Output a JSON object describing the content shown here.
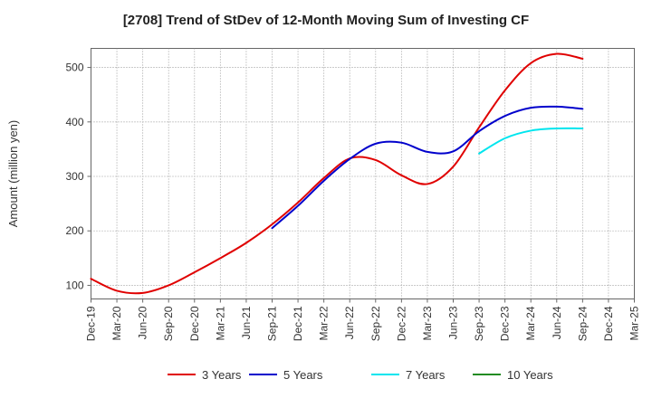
{
  "chart_data": {
    "type": "line",
    "title": "[2708]  Trend of StDev of 12-Month Moving Sum of Investing CF",
    "xlabel": "",
    "ylabel": "Amount (million yen)",
    "ylim": [
      75,
      535
    ],
    "yticks": [
      100,
      200,
      300,
      400,
      500
    ],
    "grid": true,
    "legend_position": "bottom",
    "categories": [
      "Dec-19",
      "Mar-20",
      "Jun-20",
      "Sep-20",
      "Dec-20",
      "Mar-21",
      "Jun-21",
      "Sep-21",
      "Dec-21",
      "Mar-22",
      "Jun-22",
      "Sep-22",
      "Dec-22",
      "Mar-23",
      "Jun-23",
      "Sep-23",
      "Dec-23",
      "Mar-24",
      "Jun-24",
      "Sep-24",
      "Dec-24",
      "Mar-25"
    ],
    "series": [
      {
        "name": "3 Years",
        "color": "#e00000",
        "values": [
          112,
          90,
          86,
          100,
          124,
          150,
          178,
          212,
          252,
          297,
          333,
          330,
          302,
          286,
          318,
          390,
          458,
          508,
          525,
          516,
          null,
          null
        ]
      },
      {
        "name": "5 Years",
        "color": "#0000cc",
        "values": [
          null,
          null,
          null,
          null,
          null,
          null,
          null,
          205,
          246,
          292,
          332,
          360,
          362,
          345,
          346,
          383,
          411,
          426,
          428,
          424,
          null,
          null
        ]
      },
      {
        "name": "7 Years",
        "color": "#00e5ee",
        "values": [
          null,
          null,
          null,
          null,
          null,
          null,
          null,
          null,
          null,
          null,
          null,
          null,
          null,
          null,
          null,
          342,
          370,
          384,
          388,
          388,
          null,
          null
        ]
      },
      {
        "name": "10 Years",
        "color": "#228b22",
        "values": [
          null,
          null,
          null,
          null,
          null,
          null,
          null,
          null,
          null,
          null,
          null,
          null,
          null,
          null,
          null,
          null,
          null,
          null,
          null,
          null,
          null,
          null
        ]
      }
    ]
  }
}
